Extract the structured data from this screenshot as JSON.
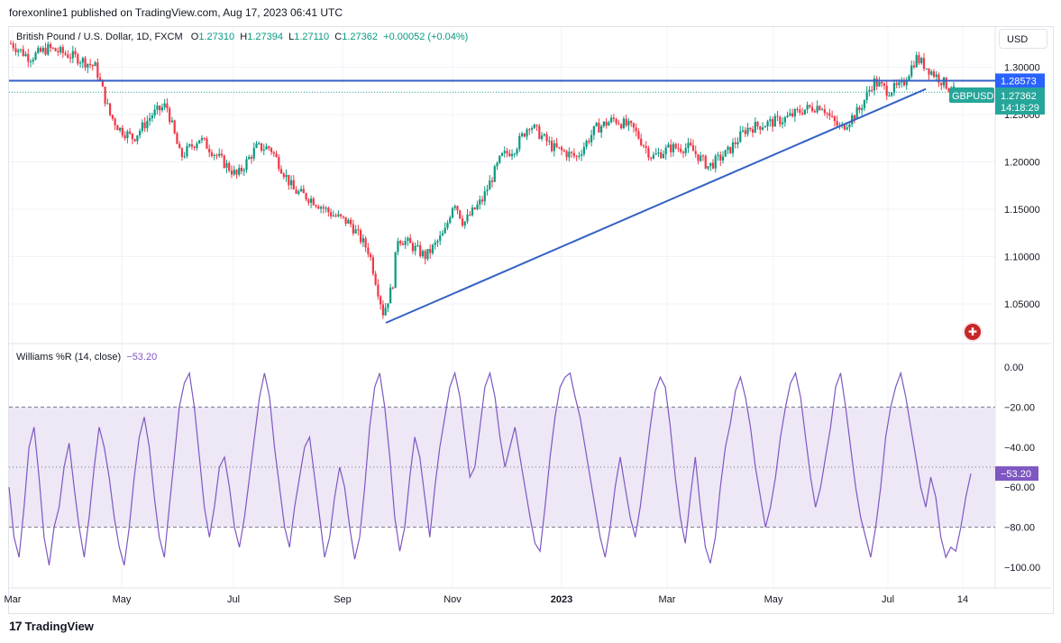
{
  "header": {
    "publisher_text": "forexonline1 published on TradingView.com, Aug 17, 2023 06:41 UTC"
  },
  "footer": {
    "brand": "TradingView",
    "logo_glyph": "17"
  },
  "currency_button": "USD",
  "legend": {
    "symbol": "British Pound / U.S. Dollar, 1D, FXCM",
    "o_label": "O",
    "o_value": "1.27310",
    "h_label": "H",
    "h_value": "1.27394",
    "l_label": "L",
    "l_value": "1.27110",
    "c_label": "C",
    "c_value": "1.27362",
    "change": "+0.00052 (+0.04%)"
  },
  "indicator_legend": {
    "name": "Williams %R (14, close)",
    "value": "−53.20"
  },
  "price_labels": {
    "hline_value": "1.28573",
    "symbol_tag": "GBPUSD",
    "last_price": "1.27362",
    "countdown": "14:18:29",
    "wr_tag": "−53.20"
  },
  "colors": {
    "up": "#089981",
    "down": "#f23645",
    "line": "#3461c4",
    "indicator": "#7e57c2",
    "band": "#ede7f6",
    "last_tag": "#26a69a"
  },
  "chart_data": [
    {
      "type": "candlestick",
      "symbol": "GBPUSD",
      "interval": "1D",
      "price_axis": {
        "ticks": [
          "1.05000",
          "1.10000",
          "1.15000",
          "1.20000",
          "1.25000",
          "1.30000"
        ],
        "ylim": [
          1.02,
          1.32
        ]
      },
      "time_axis": {
        "ticks": [
          "Mar",
          "May",
          "Jul",
          "Sep",
          "Nov",
          "2023",
          "Mar",
          "May",
          "Jul",
          "14"
        ]
      },
      "close_path": {
        "t": [
          0,
          0.02,
          0.04,
          0.07,
          0.09,
          0.105,
          0.115,
          0.13,
          0.15,
          0.165,
          0.18,
          0.2,
          0.215,
          0.24,
          0.26,
          0.275,
          0.3,
          0.32,
          0.34,
          0.36,
          0.38,
          0.395,
          0.405,
          0.41,
          0.42,
          0.44,
          0.46,
          0.47,
          0.48,
          0.5,
          0.52,
          0.535,
          0.55,
          0.575,
          0.6,
          0.62,
          0.64,
          0.66,
          0.68,
          0.7,
          0.72,
          0.74,
          0.76,
          0.78,
          0.8,
          0.82,
          0.84,
          0.86,
          0.87,
          0.88,
          0.9,
          0.915,
          0.93,
          0.945,
          0.96,
          1.0
        ],
        "close": [
          1.325,
          1.31,
          1.32,
          1.31,
          1.3,
          1.25,
          1.235,
          1.225,
          1.25,
          1.26,
          1.205,
          1.225,
          1.21,
          1.185,
          1.215,
          1.215,
          1.17,
          1.16,
          1.145,
          1.135,
          1.105,
          1.04,
          1.07,
          1.12,
          1.115,
          1.1,
          1.125,
          1.16,
          1.135,
          1.16,
          1.205,
          1.215,
          1.24,
          1.215,
          1.205,
          1.235,
          1.245,
          1.235,
          1.205,
          1.215,
          1.215,
          1.195,
          1.21,
          1.235,
          1.24,
          1.245,
          1.255,
          1.26,
          1.245,
          1.235,
          1.255,
          1.285,
          1.275,
          1.28,
          1.31,
          1.274
        ]
      },
      "horizontal_line": 1.28573,
      "trend_line": {
        "start": {
          "date": "Sep 2022",
          "price": 1.03
        },
        "end": {
          "date": "Jul 2023",
          "price": 1.277
        }
      },
      "last_price": 1.27362
    },
    {
      "type": "line",
      "name": "Williams %R (14, close)",
      "ylim": [
        -100,
        0
      ],
      "y_ticks": [
        "0.00",
        "−20.00",
        "−40.00",
        "−60.00",
        "−80.00",
        "−100.00"
      ],
      "bands": [
        -20,
        -80
      ],
      "middle_line": -50,
      "last_value": -53.2,
      "values": [
        -60,
        -85,
        -95,
        -70,
        -40,
        -30,
        -55,
        -85,
        -99,
        -80,
        -70,
        -50,
        -38,
        -60,
        -80,
        -95,
        -75,
        -50,
        -30,
        -40,
        -55,
        -75,
        -90,
        -99,
        -80,
        -55,
        -35,
        -25,
        -40,
        -65,
        -85,
        -95,
        -70,
        -45,
        -20,
        -8,
        -3,
        -20,
        -45,
        -70,
        -85,
        -70,
        -50,
        -45,
        -60,
        -80,
        -90,
        -75,
        -55,
        -35,
        -15,
        -3,
        -15,
        -40,
        -60,
        -80,
        -90,
        -70,
        -55,
        -40,
        -35,
        -55,
        -75,
        -95,
        -85,
        -65,
        -50,
        -60,
        -80,
        -96,
        -85,
        -60,
        -30,
        -10,
        -3,
        -20,
        -45,
        -75,
        -92,
        -80,
        -55,
        -35,
        -45,
        -65,
        -85,
        -60,
        -40,
        -25,
        -10,
        -3,
        -15,
        -35,
        -55,
        -50,
        -30,
        -10,
        -3,
        -15,
        -35,
        -50,
        -40,
        -30,
        -45,
        -60,
        -75,
        -88,
        -92,
        -70,
        -45,
        -25,
        -10,
        -5,
        -3,
        -15,
        -25,
        -40,
        -55,
        -70,
        -85,
        -95,
        -80,
        -60,
        -45,
        -60,
        -75,
        -85,
        -70,
        -50,
        -30,
        -12,
        -5,
        -10,
        -30,
        -55,
        -75,
        -88,
        -65,
        -45,
        -70,
        -90,
        -98,
        -85,
        -60,
        -40,
        -28,
        -12,
        -5,
        -15,
        -30,
        -50,
        -65,
        -80,
        -70,
        -55,
        -35,
        -20,
        -8,
        -3,
        -15,
        -35,
        -55,
        -70,
        -60,
        -45,
        -30,
        -10,
        -3,
        -20,
        -40,
        -60,
        -75,
        -85,
        -95,
        -80,
        -60,
        -35,
        -20,
        -10,
        -3,
        -15,
        -30,
        -45,
        -60,
        -70,
        -55,
        -65,
        -85,
        -95,
        -90,
        -92,
        -80,
        -65,
        -53.2
      ]
    }
  ]
}
